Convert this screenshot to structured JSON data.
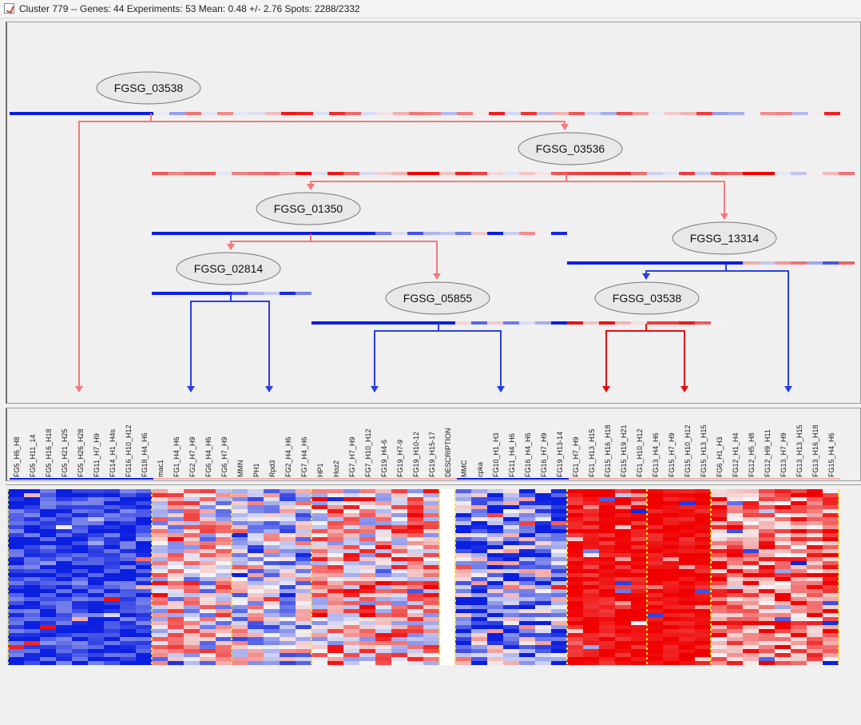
{
  "window": {
    "title": "Cluster 779 -- Genes: 44 Experiments: 53 Mean: 0.48 +/- 2.76 Spots: 2288/2332",
    "icon": "java-app-icon"
  },
  "colors": {
    "low": "#0b1fe0",
    "high": "#f00000",
    "neutral": "#f5f5f5",
    "edge_pink": "#f07a7a",
    "edge_blue": "#2a3fe0",
    "edge_red": "#e01010",
    "group_separator": "#f5e400"
  },
  "tree": {
    "nodes": [
      {
        "id": "n1",
        "label": "FGSG_03538"
      },
      {
        "id": "n2",
        "label": "FGSG_03536"
      },
      {
        "id": "n3",
        "label": "FGSG_01350"
      },
      {
        "id": "n4",
        "label": "FGSG_13314"
      },
      {
        "id": "n5",
        "label": "FGSG_02814"
      },
      {
        "id": "n6",
        "label": "FGSG_05855"
      },
      {
        "id": "n7",
        "label": "FGSG_03538"
      }
    ]
  },
  "columns": {
    "groups": [
      {
        "name": "G1",
        "labels": [
          "FG5_H6_H8",
          "FG5_H11_14",
          "FG5_H16_H18",
          "FG5_H21_H25",
          "FG5_H26_H28",
          "FG11_H7_H9",
          "FG14_H1_H4s",
          "FG16_H10_H12",
          "FG18_H4_H6"
        ]
      },
      {
        "name": "G2",
        "labels": [
          "mac1",
          "FG1_H4_H6",
          "FG2_H7_H9",
          "FG6_H4_H6",
          "FG6_H7_H9"
        ]
      },
      {
        "name": "G3",
        "labels": [
          "MMN",
          "PH1",
          "Rpd3",
          "FG2_H4_H6",
          "FG7_H4_H6"
        ]
      },
      {
        "name": "G4",
        "labels": [
          "HP1",
          "Hoz2",
          "FG7_H7_H9",
          "FG7_H10_H12",
          "FG19_H4-6",
          "FG19_H7-9",
          "FG19_H10-12",
          "FG19_H15-17"
        ]
      },
      {
        "name": "G5",
        "labels": [
          "DESCRIPTION"
        ]
      },
      {
        "name": "G6",
        "labels": [
          "MMC",
          "cpka",
          "FG10_H1_H3",
          "FG11_H4_H6",
          "FG16_H4_H6",
          "FG16_H7_H9",
          "FG19_H13-14"
        ]
      },
      {
        "name": "G7",
        "labels": [
          "FG1_H7_H9",
          "FG1_H13_H15",
          "FG15_H16_H18",
          "FG15_H19_H21",
          "FG1_H10_H12"
        ]
      },
      {
        "name": "G8",
        "labels": [
          "FG13_H4_H6",
          "FG15_H7_H9",
          "FG15_H10_H12",
          "FG15_H13_H15"
        ]
      },
      {
        "name": "G9",
        "labels": [
          "FG6_H1_H3",
          "FG12_H1_H4",
          "FG12_H5_H8",
          "FG12_H9_H11",
          "FG13_H7_H9",
          "FG13_H13_H15",
          "FG13_H16_H18",
          "FG15_H4_H6"
        ]
      }
    ]
  }
}
